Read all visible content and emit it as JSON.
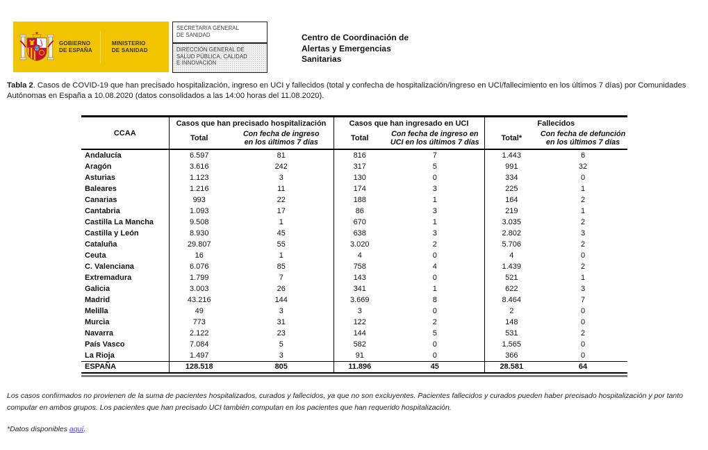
{
  "header": {
    "gobierno": "GOBIERNO\nDE ESPAÑA",
    "ministerio": "MINISTERIO\nDE SANIDAD",
    "secretaria_box": "SECRETARIA GENERAL\nDE SANIDAD",
    "direccion_box": "DIRECCIÓN GENERAL DE\nSALUD PÚBLICA, CALIDAD\nE INNOVACIÓN",
    "center_name": "Centro de Coordinación de\nAlertas y Emergencias\nSanitarias"
  },
  "title": {
    "label": "Tabla 2",
    "text": ". Casos de COVID-19 que han precisado hospitalización, ingreso en UCI y fallecidos (total y confecha de hospitalización/ingreso en UCI/fallecimiento en los últimos 7 días) por Comunidades Autónomas en España a 10.08.2020 (datos consolidados a las 14:00 horas del 11.08.2020)."
  },
  "table": {
    "col_ccaa": "CCAA",
    "groups": [
      {
        "label": "Casos que han precisado hospitalización",
        "sub_total": "Total",
        "sub_fecha": "Con fecha de ingreso\nen los últimos 7 días"
      },
      {
        "label": "Casos que han ingresado en UCI",
        "sub_total": "Total",
        "sub_fecha": "Con fecha de ingreso en\nUCI en los últimos 7 días"
      },
      {
        "label": "Fallecidos",
        "sub_total": "Total*",
        "sub_fecha": "Con fecha de defunción\nen los últimos 7 días"
      }
    ],
    "rows": [
      [
        "Andalucía",
        "6.597",
        "81",
        "816",
        "7",
        "1.443",
        "6"
      ],
      [
        "Aragón",
        "3.616",
        "242",
        "317",
        "5",
        "991",
        "32"
      ],
      [
        "Asturias",
        "1.123",
        "3",
        "130",
        "0",
        "334",
        "0"
      ],
      [
        "Baleares",
        "1.216",
        "11",
        "174",
        "3",
        "225",
        "1"
      ],
      [
        "Canarias",
        "993",
        "22",
        "188",
        "1",
        "164",
        "2"
      ],
      [
        "Cantabria",
        "1.093",
        "17",
        "86",
        "3",
        "219",
        "1"
      ],
      [
        "Castilla La Mancha",
        "9.508",
        "1",
        "670",
        "1",
        "3.035",
        "2"
      ],
      [
        "Castilla y León",
        "8.930",
        "45",
        "638",
        "3",
        "2.802",
        "3"
      ],
      [
        "Cataluña",
        "29.807",
        "55",
        "3.020",
        "2",
        "5.706",
        "2"
      ],
      [
        "Ceuta",
        "16",
        "1",
        "4",
        "0",
        "4",
        "0"
      ],
      [
        "C. Valenciana",
        "6.076",
        "85",
        "758",
        "4",
        "1.439",
        "2"
      ],
      [
        "Extremadura",
        "1.799",
        "7",
        "143",
        "0",
        "521",
        "1"
      ],
      [
        "Galicia",
        "3.003",
        "26",
        "341",
        "1",
        "622",
        "3"
      ],
      [
        "Madrid",
        "43.216",
        "144",
        "3.669",
        "8",
        "8.464",
        "7"
      ],
      [
        "Melilla",
        "49",
        "3",
        "3",
        "0",
        "2",
        "0"
      ],
      [
        "Murcia",
        "773",
        "31",
        "122",
        "2",
        "148",
        "0"
      ],
      [
        "Navarra",
        "2.122",
        "23",
        "144",
        "5",
        "531",
        "2"
      ],
      [
        "País Vasco",
        "7.084",
        "5",
        "582",
        "0",
        "1.565",
        "0"
      ],
      [
        "La Rioja",
        "1.497",
        "3",
        "91",
        "0",
        "366",
        "0"
      ]
    ],
    "total_row": [
      "ESPAÑA",
      "128.518",
      "805",
      "11.896",
      "45",
      "28.581",
      "64"
    ]
  },
  "footnotes": {
    "note": "Los casos confirmados no provienen de la suma de pacientes hospitalizados, curados y fallecidos, ya que no son excluyentes. Pacientes fallecidos y curados pueden haber precisado hospitalización y por tanto computar en ambos grupos. Los pacientes que han precisado UCI también computan en los pacientes que han requerido hospitalización.",
    "datos_prefix": "*Datos disponibles ",
    "datos_link": "aquí",
    "datos_suffix": "."
  },
  "colors": {
    "brand-yellow": "#F2C500",
    "link-blue": "#4A49E8",
    "rule-gray": "#818181"
  }
}
